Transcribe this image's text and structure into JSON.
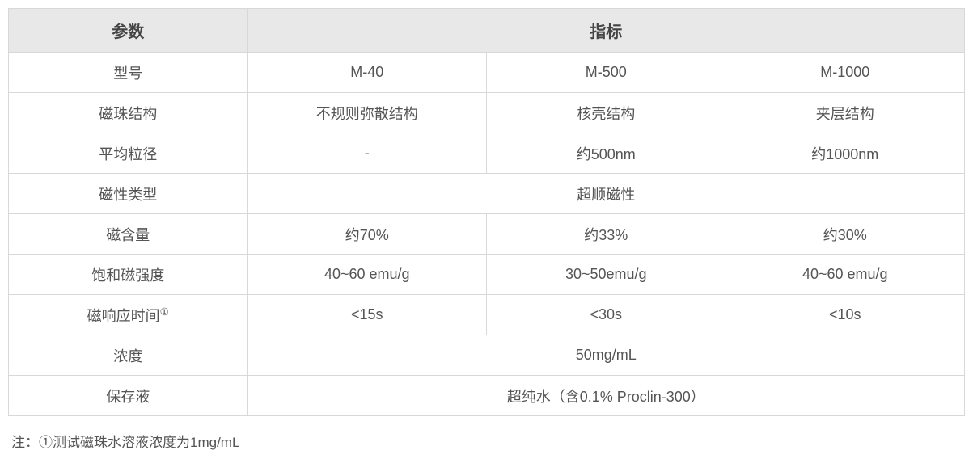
{
  "table": {
    "header_bg": "#e8e8e8",
    "border_color": "#d8d8d8",
    "text_color": "#555555",
    "header_text_color": "#444444",
    "columns": {
      "param_header": "参数",
      "spec_header": "指标"
    },
    "rows": {
      "model": {
        "label": "型号",
        "c1": "M-40",
        "c2": "M-500",
        "c3": "M-1000"
      },
      "structure": {
        "label": "磁珠结构",
        "c1": "不规则弥散结构",
        "c2": "核壳结构",
        "c3": "夹层结构"
      },
      "diameter": {
        "label": "平均粒径",
        "c1": "-",
        "c2": "约500nm",
        "c3": "约1000nm"
      },
      "magtype": {
        "label": "磁性类型",
        "merged": "超顺磁性"
      },
      "content": {
        "label": "磁含量",
        "c1": "约70%",
        "c2": "约33%",
        "c3": "约30%"
      },
      "saturation": {
        "label": "饱和磁强度",
        "c1": "40~60 emu/g",
        "c2": "30~50emu/g",
        "c3": "40~60 emu/g"
      },
      "response": {
        "label_prefix": "磁响应时间",
        "label_sup": "①",
        "c1": "<15s",
        "c2": "<30s",
        "c3": "<10s"
      },
      "concentration": {
        "label": "浓度",
        "merged": "50mg/mL"
      },
      "storage": {
        "label": "保存液",
        "merged": "超纯水（含0.1% Proclin-300）"
      }
    }
  },
  "note": {
    "text": "注：①测试磁珠水溶液浓度为1mg/mL"
  }
}
